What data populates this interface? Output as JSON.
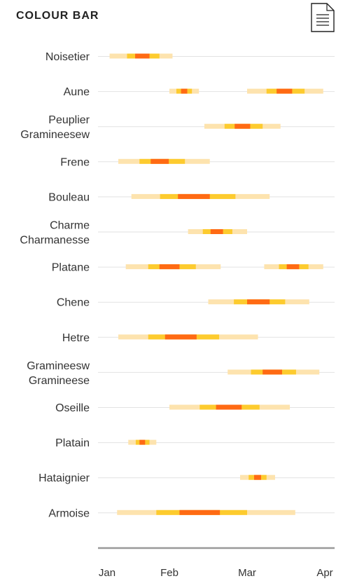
{
  "header": {
    "title": "COLOUR BAR",
    "document_icon": "document-icon"
  },
  "colors": {
    "low": "#FDE3AE",
    "medium": "#FDCB2E",
    "high": "#FF6A13",
    "gridline": "#E2E2E2",
    "axis": "#999999"
  },
  "chart_data": {
    "type": "bar",
    "subtype": "timeline-intensity",
    "title": "COLOUR BAR",
    "x_axis": {
      "ticks": [
        "Jan",
        "Feb",
        "Mar",
        "Apr"
      ],
      "range_months": [
        0,
        3
      ]
    },
    "intensity_levels": [
      "low",
      "medium",
      "high"
    ],
    "series": [
      {
        "name_lines": [
          "Noisetier"
        ],
        "segments": [
          [
            [
              0.04,
              1.04
            ],
            [
              0.32,
              0.84
            ],
            [
              0.45,
              0.68
            ]
          ]
        ]
      },
      {
        "name_lines": [
          "Aune"
        ],
        "segments": [
          [
            [
              1.0,
              1.38
            ],
            [
              1.09,
              1.29
            ],
            [
              1.15,
              1.23
            ]
          ],
          [
            [
              2.0,
              2.98
            ],
            [
              2.25,
              2.74
            ],
            [
              2.38,
              2.58
            ]
          ]
        ]
      },
      {
        "name_lines": [
          "Peuplier",
          "Gramineesew"
        ],
        "segments": [
          [
            [
              1.45,
              2.43
            ],
            [
              1.71,
              2.2
            ],
            [
              1.84,
              2.04
            ]
          ]
        ]
      },
      {
        "name_lines": [
          "Frene"
        ],
        "segments": [
          [
            [
              0.18,
              1.52
            ],
            [
              0.52,
              1.2
            ],
            [
              0.7,
              0.99
            ]
          ]
        ]
      },
      {
        "name_lines": [
          "Bouleau"
        ],
        "segments": [
          [
            [
              0.39,
              2.29
            ],
            [
              0.85,
              1.85
            ],
            [
              1.11,
              1.52
            ]
          ]
        ]
      },
      {
        "name_lines": [
          "Charme",
          "Charmanesse"
        ],
        "segments": [
          [
            [
              1.24,
              2.0
            ],
            [
              1.43,
              1.81
            ],
            [
              1.53,
              1.69
            ]
          ]
        ]
      },
      {
        "name_lines": [
          "Platane"
        ],
        "segments": [
          [
            [
              0.3,
              1.66
            ],
            [
              0.66,
              1.34
            ],
            [
              0.84,
              1.13
            ]
          ],
          [
            [
              2.22,
              2.98
            ],
            [
              2.41,
              2.79
            ],
            [
              2.51,
              2.67
            ]
          ]
        ]
      },
      {
        "name_lines": [
          "Chene"
        ],
        "segments": [
          [
            [
              1.5,
              2.8
            ],
            [
              1.83,
              2.49
            ],
            [
              2.0,
              2.29
            ]
          ]
        ]
      },
      {
        "name_lines": [
          "Hetre"
        ],
        "segments": [
          [
            [
              0.18,
              2.14
            ],
            [
              0.66,
              1.64
            ],
            [
              0.93,
              1.35
            ]
          ]
        ]
      },
      {
        "name_lines": [
          "Gramineesw",
          "Gramineese"
        ],
        "segments": [
          [
            [
              1.75,
              2.93
            ],
            [
              2.05,
              2.63
            ],
            [
              2.2,
              2.45
            ]
          ]
        ]
      },
      {
        "name_lines": [
          "Oseille"
        ],
        "segments": [
          [
            [
              1.0,
              2.55
            ],
            [
              1.39,
              2.16
            ],
            [
              1.6,
              1.93
            ]
          ]
        ]
      },
      {
        "name_lines": [
          "Platain"
        ],
        "segments": [
          [
            [
              0.34,
              0.79
            ],
            [
              0.46,
              0.68
            ],
            [
              0.52,
              0.61
            ]
          ]
        ]
      },
      {
        "name_lines": [
          "Hataignier"
        ],
        "segments": [
          [
            [
              1.91,
              2.36
            ],
            [
              2.02,
              2.25
            ],
            [
              2.09,
              2.18
            ]
          ]
        ]
      },
      {
        "name_lines": [
          "Armoise"
        ],
        "segments": [
          [
            [
              0.16,
              2.62
            ],
            [
              0.79,
              2.0
            ],
            [
              1.13,
              1.65
            ]
          ]
        ]
      }
    ]
  }
}
